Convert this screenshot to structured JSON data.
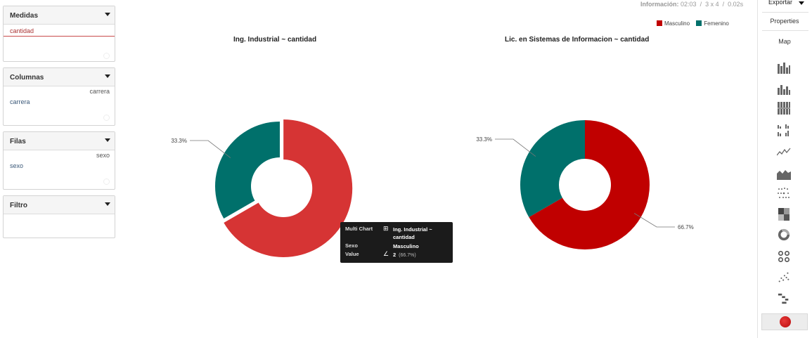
{
  "panels": {
    "medidas": {
      "title": "Medidas",
      "items": [
        "cantidad"
      ]
    },
    "columnas": {
      "title": "Columnas",
      "field": "carrera",
      "items": [
        "carrera"
      ]
    },
    "filas": {
      "title": "Filas",
      "field": "sexo",
      "items": [
        "sexo"
      ]
    },
    "filtro": {
      "title": "Filtro"
    }
  },
  "info": {
    "label": "Información:",
    "time": "02:03",
    "dims": "3 x 4",
    "duration": "0.02s"
  },
  "legend": [
    {
      "name": "Masculino",
      "color": "#c00000"
    },
    {
      "name": "Femenino",
      "color": "#00706b"
    }
  ],
  "chart_data": [
    {
      "type": "pie",
      "title": "Ing. Industrial ~ cantidad",
      "categories": [
        "Masculino",
        "Femenino"
      ],
      "values": [
        2,
        1
      ],
      "labels": [
        "",
        "33.3%"
      ],
      "colors": [
        "#d63434",
        "#00706b"
      ]
    },
    {
      "type": "pie",
      "title": "Lic. en Sistemas de Informacion ~ cantidad",
      "categories": [
        "Masculino",
        "Femenino"
      ],
      "values": [
        2,
        1
      ],
      "labels": [
        "66.7%",
        "33.3%"
      ],
      "colors": [
        "#c00000",
        "#00706b"
      ]
    }
  ],
  "tooltip": {
    "rows": [
      {
        "key": "Multi Chart",
        "icon": "⊞",
        "value": "Ing. Industrial ~ cantidad"
      },
      {
        "key": "Sexo",
        "icon": "",
        "value": "Masculino"
      },
      {
        "key": "Value",
        "icon": "∠",
        "value": "2",
        "extra": "(66.7%)"
      }
    ]
  },
  "toolbar": {
    "export_label": "Exportar",
    "properties_label": "Properties",
    "map_label": "Map",
    "icons": [
      "bar-chart-icon",
      "stacked-bar-icon",
      "stacked-bar-100-icon",
      "multiple-bar-icon",
      "line-chart-icon",
      "area-chart-icon",
      "dot-chart-icon",
      "heatmap-icon",
      "donut-chart-icon",
      "multi-donut-icon",
      "scatter-icon",
      "waterfall-icon",
      "multi-pie-icon"
    ]
  }
}
